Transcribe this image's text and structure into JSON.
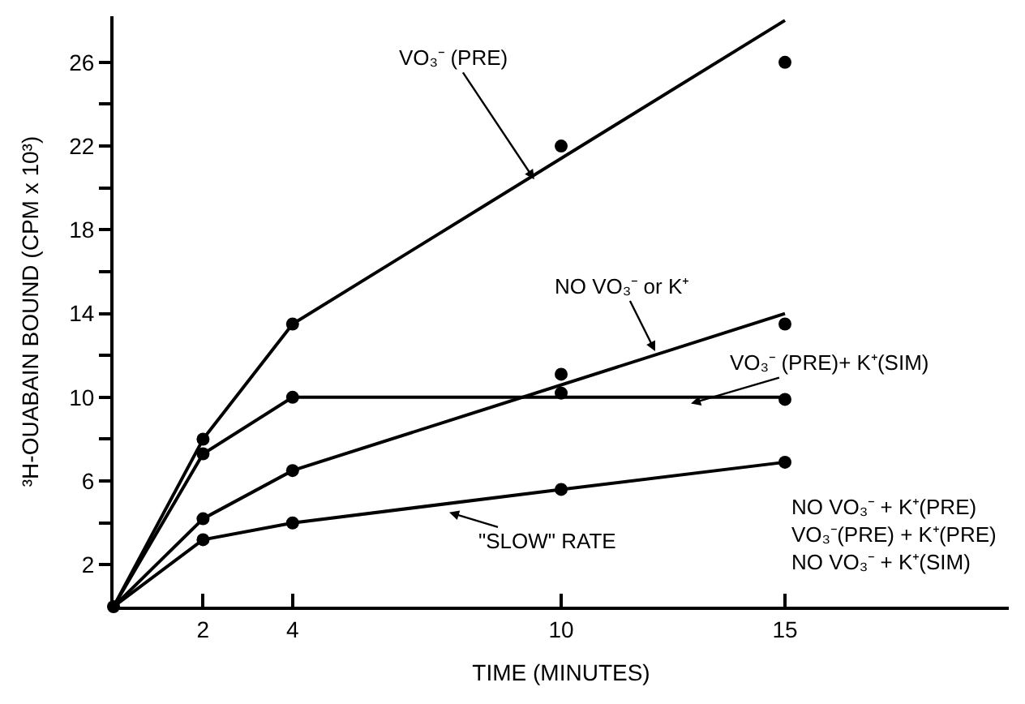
{
  "chart_data": {
    "type": "line",
    "xlabel": "TIME (MINUTES)",
    "ylabel": "³H-OUABAIN BOUND (CPM x 10³)",
    "xlim": [
      0,
      20
    ],
    "ylim": [
      0,
      28.2
    ],
    "xticks": [
      2,
      4,
      10,
      15
    ],
    "yticks": [
      2,
      {
        "value": 4,
        "label": null
      },
      6,
      {
        "value": 8,
        "label": null
      },
      10,
      {
        "value": 12,
        "label": null
      },
      14,
      {
        "value": 16,
        "label": null
      },
      18,
      {
        "value": 20,
        "label": null
      },
      22,
      {
        "value": 24,
        "label": null
      },
      26
    ],
    "series": [
      {
        "type": "line",
        "marker": "none",
        "color": "#000000",
        "x": [
          0,
          2,
          4,
          15
        ],
        "values": [
          0,
          8,
          13.5,
          28
        ]
      },
      {
        "type": "scatter",
        "marker": "circle",
        "color": "#000000",
        "x": [
          2,
          4,
          10,
          15
        ],
        "values": [
          8,
          13.5,
          22,
          26
        ]
      },
      {
        "type": "line",
        "marker": "none",
        "color": "#000000",
        "x": [
          0,
          2,
          4,
          15
        ],
        "values": [
          0,
          4.2,
          6.5,
          14
        ]
      },
      {
        "type": "scatter",
        "marker": "circle",
        "color": "#000000",
        "x": [
          2,
          4,
          10,
          15
        ],
        "values": [
          4.2,
          6.5,
          11.1,
          13.5
        ]
      },
      {
        "type": "line",
        "marker": "none",
        "color": "#000000",
        "x": [
          0,
          2,
          4,
          15
        ],
        "values": [
          0,
          7.3,
          10,
          10
        ]
      },
      {
        "type": "scatter",
        "marker": "circle",
        "color": "#000000",
        "x": [
          2,
          4,
          10,
          15
        ],
        "values": [
          7.3,
          10,
          10.2,
          9.9
        ]
      },
      {
        "marker": "circle",
        "color": "#000000",
        "x": [
          0,
          2,
          4,
          10,
          15
        ],
        "values": [
          0,
          3.2,
          4,
          5.6,
          6.9
        ]
      }
    ],
    "annotations": [
      {
        "text": "VO₃⁻ (PRE)",
        "x": 9.4,
        "y": 20.4
      },
      {
        "text": "NO VO₃⁻ or K⁺",
        "x": 12.1,
        "y": 12.2
      },
      {
        "text": "VO₃⁻ (PRE)+ K⁺(SIM)",
        "x": 12.9,
        "y": 9.7
      },
      {
        "text": "\"SLOW\" RATE",
        "x": 7.5,
        "y": 4.5
      },
      "NO VO₃⁻ + K⁺(PRE)\nVO₃⁻(PRE) + K⁺(PRE)\nNO VO₃⁻ + K⁺(SIM)"
    ]
  }
}
